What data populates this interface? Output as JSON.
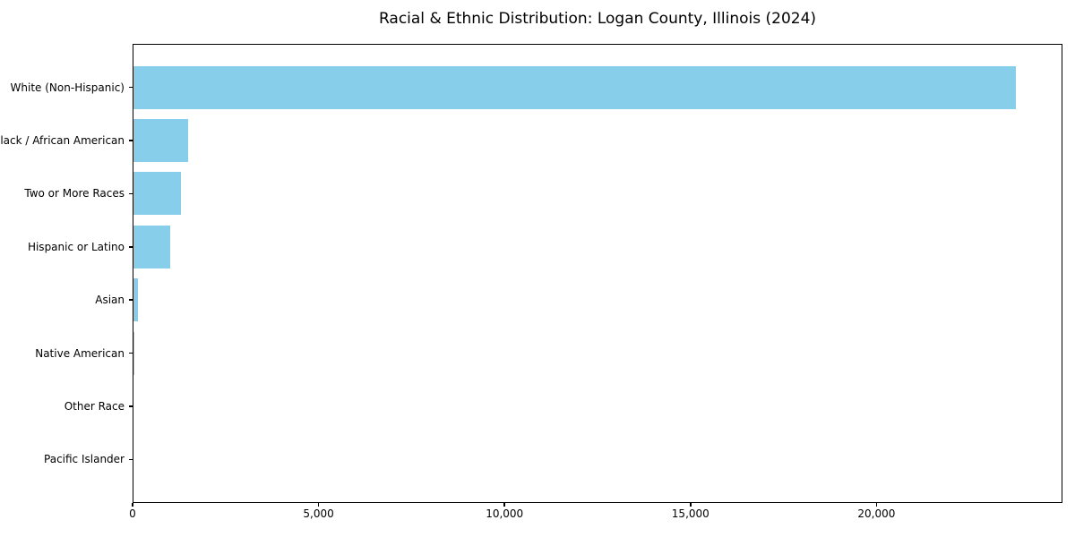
{
  "chart_data": {
    "type": "bar",
    "orientation": "horizontal",
    "title": "Racial & Ethnic Distribution: Logan County, Illinois (2024)",
    "categories": [
      "White (Non-Hispanic)",
      "Black / African American",
      "Two or More Races",
      "Hispanic or Latino",
      "Asian",
      "Native American",
      "Other Race",
      "Pacific Islander"
    ],
    "values": [
      23750,
      1500,
      1300,
      1000,
      150,
      40,
      25,
      10
    ],
    "xlabel": "",
    "ylabel": "",
    "xlim": [
      0,
      25000
    ],
    "xticks": [
      0,
      5000,
      10000,
      15000,
      20000
    ],
    "xtick_labels": [
      "0",
      "5,000",
      "10,000",
      "15,000",
      "20,000"
    ],
    "bar_color": "#87CEEB",
    "background_color": "#FFFFFF",
    "axis_color": "#000000",
    "grid": false,
    "legend": null
  }
}
